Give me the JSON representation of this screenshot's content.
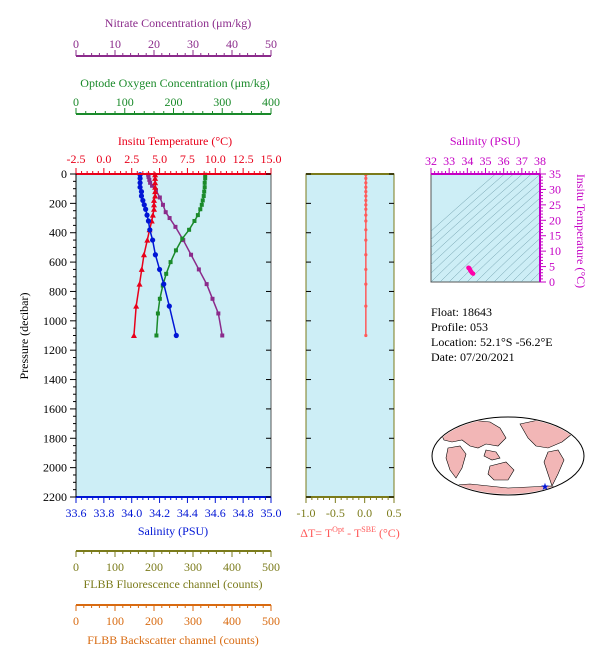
{
  "colors": {
    "nitrate": "#8b2b8b",
    "oxygen": "#1a8a2a",
    "temperature": "#e8001a",
    "salinity": "#0015d5",
    "delta": "#ff5a5a",
    "fluorescence": "#7b7b1b",
    "backscatter": "#d86a10",
    "plot_bg": "#cdeef6",
    "ts_axis": "#c400c4",
    "ts_point": "#ff00aa"
  },
  "axes": {
    "nitrate": {
      "title": "Nitrate Concentration (μm/kg)",
      "ticks": [
        "0",
        "10",
        "20",
        "30",
        "40",
        "50"
      ],
      "range": [
        0,
        50
      ]
    },
    "oxygen": {
      "title": "Optode Oxygen Concentration (μm/kg)",
      "ticks": [
        "0",
        "100",
        "200",
        "300",
        "400"
      ],
      "range": [
        0,
        400
      ]
    },
    "temperature": {
      "title": "Insitu Temperature (°C)",
      "ticks": [
        "-2.5",
        "0.0",
        "2.5",
        "5.0",
        "7.5",
        "10.0",
        "12.5",
        "15.0"
      ],
      "range": [
        -2.5,
        15.0
      ]
    },
    "pressure": {
      "title": "Pressure (decibar)",
      "ticks": [
        "0",
        "200",
        "400",
        "600",
        "800",
        "1000",
        "1200",
        "1400",
        "1600",
        "1800",
        "2000",
        "2200"
      ],
      "range": [
        0,
        2200
      ]
    },
    "salinity": {
      "title": "Salinity (PSU)",
      "ticks": [
        "33.6",
        "33.8",
        "34.0",
        "34.2",
        "34.4",
        "34.6",
        "34.8",
        "35.0"
      ],
      "range": [
        33.6,
        35.0
      ]
    },
    "delta": {
      "title_prefix": "ΔT= T",
      "title_sup1": "Opt",
      "title_mid": " - T",
      "title_sup2": "SBE",
      "title_suffix": " (°C)",
      "ticks": [
        "-1.0",
        "-0.5",
        "0.0",
        "0.5"
      ],
      "range": [
        -1.0,
        0.5
      ]
    },
    "fluorescence": {
      "title": "FLBB Fluorescence channel (counts)",
      "ticks": [
        "0",
        "100",
        "200",
        "300",
        "400",
        "500"
      ],
      "range": [
        0,
        500
      ]
    },
    "backscatter": {
      "title": "FLBB Backscatter channel (counts)",
      "ticks": [
        "0",
        "100",
        "200",
        "300",
        "400",
        "500"
      ],
      "range": [
        0,
        500
      ]
    },
    "ts_salinity": {
      "title": "Salinity (PSU)",
      "ticks": [
        "32",
        "33",
        "34",
        "35",
        "36",
        "37",
        "38"
      ],
      "range": [
        32,
        38
      ]
    },
    "ts_temperature": {
      "title": "Insitu Temperature (°C)",
      "ticks": [
        "0",
        "5",
        "10",
        "15",
        "20",
        "25",
        "30",
        "35"
      ],
      "range": [
        0,
        35
      ]
    }
  },
  "info": {
    "float": "Float:  18643",
    "profile": "Profile:  053",
    "location": "Location:  52.1°S  -56.2°E",
    "date": "Date:  07/20/2021"
  },
  "chart_data": [
    {
      "type": "line",
      "title": "",
      "ylabel": "Pressure (decibar)",
      "ylim": [
        0,
        2200
      ],
      "series": [
        {
          "name": "Nitrate Concentration (μm/kg)",
          "x_axis": "nitrate",
          "x": [
            18.5,
            18.6,
            18.8,
            19.0,
            19.5,
            20.5,
            21.5,
            22.3,
            23.0,
            24.0,
            25.5,
            27.5,
            29.5,
            31.5,
            33.5,
            35.0,
            36.5,
            37.5
          ],
          "y": [
            5,
            20,
            40,
            60,
            80,
            110,
            160,
            210,
            260,
            300,
            360,
            450,
            550,
            650,
            750,
            850,
            950,
            1100
          ]
        },
        {
          "name": "Optode Oxygen Concentration (μm/kg)",
          "x_axis": "oxygen",
          "x": [
            265,
            265,
            264,
            264,
            263,
            262,
            260,
            258,
            255,
            250,
            243,
            232,
            218,
            205,
            194,
            185,
            178,
            172,
            168,
            165
          ],
          "y": [
            5,
            30,
            60,
            90,
            120,
            150,
            180,
            210,
            240,
            280,
            320,
            380,
            440,
            520,
            600,
            680,
            760,
            850,
            950,
            1100
          ]
        },
        {
          "name": "Insitu Temperature (°C)",
          "x_axis": "temperature",
          "x": [
            4.6,
            4.6,
            4.6,
            4.6,
            4.6,
            4.6,
            4.5,
            4.5,
            4.5,
            4.4,
            4.3,
            4.1,
            3.9,
            3.6,
            3.4,
            3.2,
            2.9,
            2.7
          ],
          "y": [
            5,
            30,
            60,
            90,
            120,
            150,
            180,
            210,
            240,
            280,
            320,
            380,
            450,
            550,
            650,
            750,
            900,
            1100
          ]
        },
        {
          "name": "Salinity (PSU)",
          "x_axis": "salinity",
          "x": [
            34.06,
            34.06,
            34.06,
            34.06,
            34.07,
            34.07,
            34.08,
            34.09,
            34.1,
            34.11,
            34.12,
            34.13,
            34.15,
            34.17,
            34.2,
            34.23,
            34.27,
            34.32
          ],
          "y": [
            5,
            30,
            60,
            90,
            120,
            150,
            180,
            210,
            240,
            280,
            320,
            380,
            450,
            550,
            650,
            750,
            900,
            1100
          ]
        },
        {
          "name": "ΔT= TOpt - TSBE (°C)",
          "x_axis": "delta",
          "x": [
            0.02,
            0.02,
            0.02,
            0.02,
            0.02,
            0.02,
            0.02,
            0.02,
            0.02,
            0.02,
            0.02,
            0.02,
            0.02,
            0.02,
            0.02,
            0.02,
            0.02,
            0.02
          ],
          "y": [
            5,
            30,
            60,
            90,
            120,
            150,
            180,
            210,
            240,
            280,
            320,
            380,
            450,
            550,
            650,
            750,
            900,
            1100
          ]
        }
      ]
    },
    {
      "type": "scatter",
      "title": "",
      "xlabel": "Salinity (PSU)",
      "ylabel": "Insitu Temperature (°C)",
      "xlim": [
        32,
        38
      ],
      "ylim": [
        0,
        35
      ],
      "series": [
        {
          "name": "",
          "x": [
            34.06,
            34.07,
            34.08,
            34.1,
            34.12,
            34.14,
            34.16,
            34.19,
            34.23,
            34.27,
            34.32
          ],
          "y": [
            4.6,
            4.6,
            4.5,
            4.5,
            4.3,
            4.1,
            3.8,
            3.5,
            3.2,
            2.9,
            2.7
          ]
        }
      ]
    }
  ]
}
